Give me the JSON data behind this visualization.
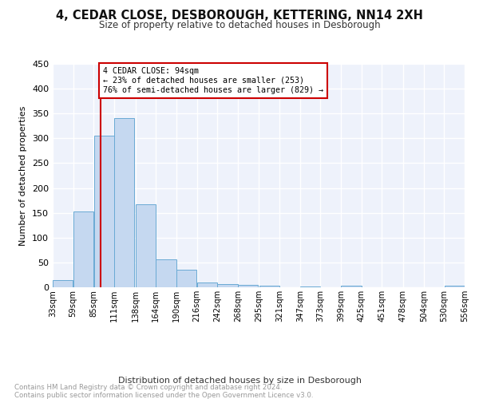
{
  "title": "4, CEDAR CLOSE, DESBOROUGH, KETTERING, NN14 2XH",
  "subtitle": "Size of property relative to detached houses in Desborough",
  "xlabel": "Distribution of detached houses by size in Desborough",
  "ylabel": "Number of detached properties",
  "bar_edges": [
    33,
    59,
    85,
    111,
    138,
    164,
    190,
    216,
    242,
    268,
    295,
    321,
    347,
    373,
    399,
    425,
    451,
    478,
    504,
    530,
    556
  ],
  "bar_heights": [
    15,
    153,
    306,
    340,
    167,
    56,
    35,
    10,
    7,
    5,
    3,
    0,
    2,
    0,
    3,
    0,
    0,
    0,
    0,
    4
  ],
  "bar_color": "#c5d8f0",
  "bar_edgecolor": "#6aaad4",
  "property_line_x": 94,
  "property_line_color": "#cc0000",
  "annotation_text": "4 CEDAR CLOSE: 94sqm\n← 23% of detached houses are smaller (253)\n76% of semi-detached houses are larger (829) →",
  "annotation_box_color": "#cc0000",
  "ylim": [
    0,
    450
  ],
  "yticks": [
    0,
    50,
    100,
    150,
    200,
    250,
    300,
    350,
    400,
    450
  ],
  "tick_labels": [
    "33sqm",
    "59sqm",
    "85sqm",
    "111sqm",
    "138sqm",
    "164sqm",
    "190sqm",
    "216sqm",
    "242sqm",
    "268sqm",
    "295sqm",
    "321sqm",
    "347sqm",
    "373sqm",
    "399sqm",
    "425sqm",
    "451sqm",
    "478sqm",
    "504sqm",
    "530sqm",
    "556sqm"
  ],
  "footer_text": "Contains HM Land Registry data © Crown copyright and database right 2024.\nContains public sector information licensed under the Open Government Licence v3.0.",
  "background_color": "#eef2fb",
  "grid_color": "#ffffff",
  "fig_background": "#ffffff"
}
